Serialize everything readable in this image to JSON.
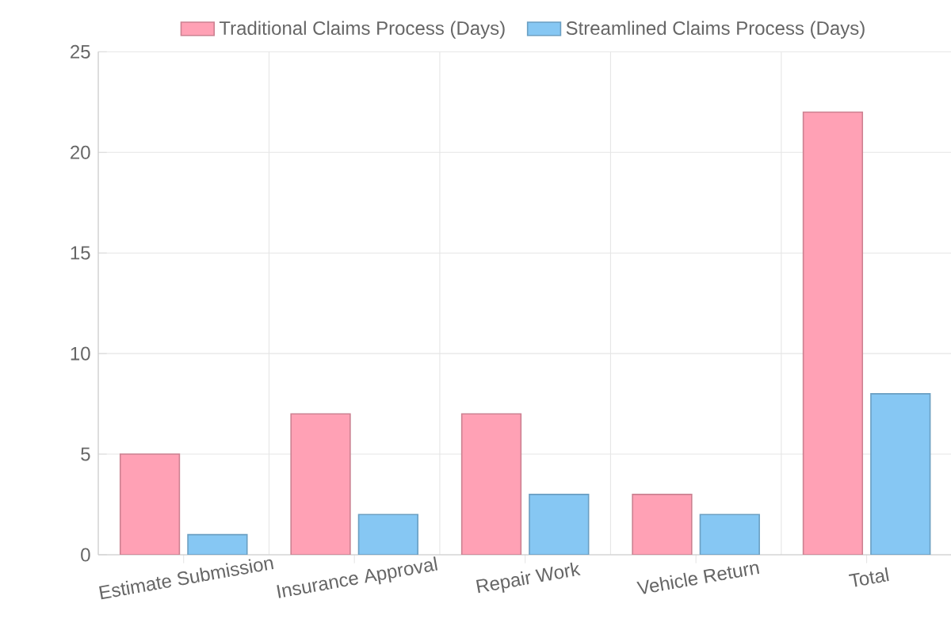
{
  "chart_data": {
    "type": "bar",
    "categories": [
      "Estimate Submission",
      "Insurance Approval",
      "Repair Work",
      "Vehicle Return",
      "Total"
    ],
    "series": [
      {
        "name": "Traditional Claims Process (Days)",
        "color": "#ffa1b5",
        "values": [
          5,
          7,
          7,
          3,
          22
        ]
      },
      {
        "name": "Streamlined Claims Process (Days)",
        "color": "#86c7f3",
        "values": [
          1,
          2,
          3,
          2,
          8
        ]
      }
    ],
    "ylim": [
      0,
      25
    ],
    "yticks": [
      0,
      5,
      10,
      15,
      20,
      25
    ],
    "grid": true,
    "legend": "top"
  }
}
